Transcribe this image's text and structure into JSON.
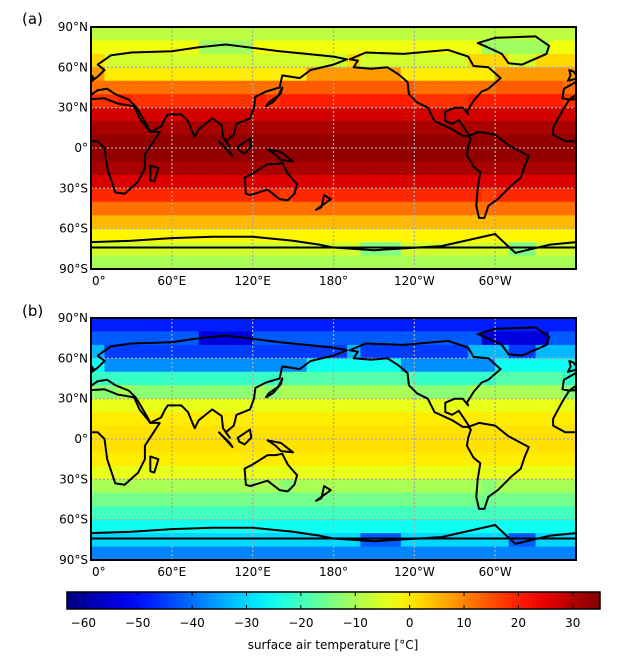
{
  "panels": [
    {
      "label": "(a)",
      "field": "warm",
      "y_tick_labels": [
        "90°N",
        "60°N",
        "30°N",
        "0°",
        "30°S",
        "60°S",
        "90°S"
      ],
      "x_tick_labels": [
        "0°",
        "60°E",
        "120°E",
        "180°",
        "120°W",
        "60°W"
      ]
    },
    {
      "label": "(b)",
      "field": "cold",
      "y_tick_labels": [
        "90°N",
        "60°N",
        "30°N",
        "0°",
        "30°S",
        "60°S",
        "90°S"
      ],
      "x_tick_labels": [
        "0°",
        "60°E",
        "120°E",
        "180°",
        "120°W",
        "60°W"
      ]
    }
  ],
  "colorbar": {
    "label": "surface air temperature [°C]",
    "tick_labels": [
      "−60",
      "−50",
      "−40",
      "−30",
      "−20",
      "−10",
      "0",
      "10",
      "20",
      "30"
    ],
    "tick_values": [
      -60,
      -50,
      -40,
      -30,
      -20,
      -10,
      0,
      10,
      20,
      30
    ],
    "range": [
      -63,
      35
    ],
    "colormap": "jet"
  },
  "chart_data": [
    {
      "type": "heatmap",
      "title": "",
      "xlabel": "",
      "ylabel": "",
      "x_range": [
        0,
        360
      ],
      "y_range": [
        -90,
        90
      ],
      "grid": true,
      "approx_zonal_mean_temperature_c": {
        "latitudes": [
          85,
          75,
          65,
          55,
          45,
          35,
          25,
          15,
          5,
          -5,
          -15,
          -25,
          -35,
          -45,
          -55,
          -65,
          -75,
          -85
        ],
        "values": [
          -8,
          -3,
          2,
          8,
          14,
          20,
          27,
          31,
          33,
          33,
          31,
          26,
          19,
          12,
          5,
          -1,
          -6,
          -10
        ]
      }
    },
    {
      "type": "heatmap",
      "title": "",
      "xlabel": "",
      "ylabel": "",
      "x_range": [
        0,
        360
      ],
      "y_range": [
        -90,
        90
      ],
      "grid": true,
      "approx_zonal_mean_temperature_c": {
        "latitudes": [
          85,
          75,
          65,
          55,
          45,
          35,
          25,
          15,
          5,
          -5,
          -15,
          -25,
          -35,
          -45,
          -55,
          -65,
          -75,
          -85
        ],
        "values": [
          -48,
          -42,
          -33,
          -25,
          -18,
          -10,
          -4,
          0,
          1,
          1,
          0,
          -4,
          -10,
          -15,
          -20,
          -25,
          -30,
          -38
        ]
      }
    }
  ]
}
